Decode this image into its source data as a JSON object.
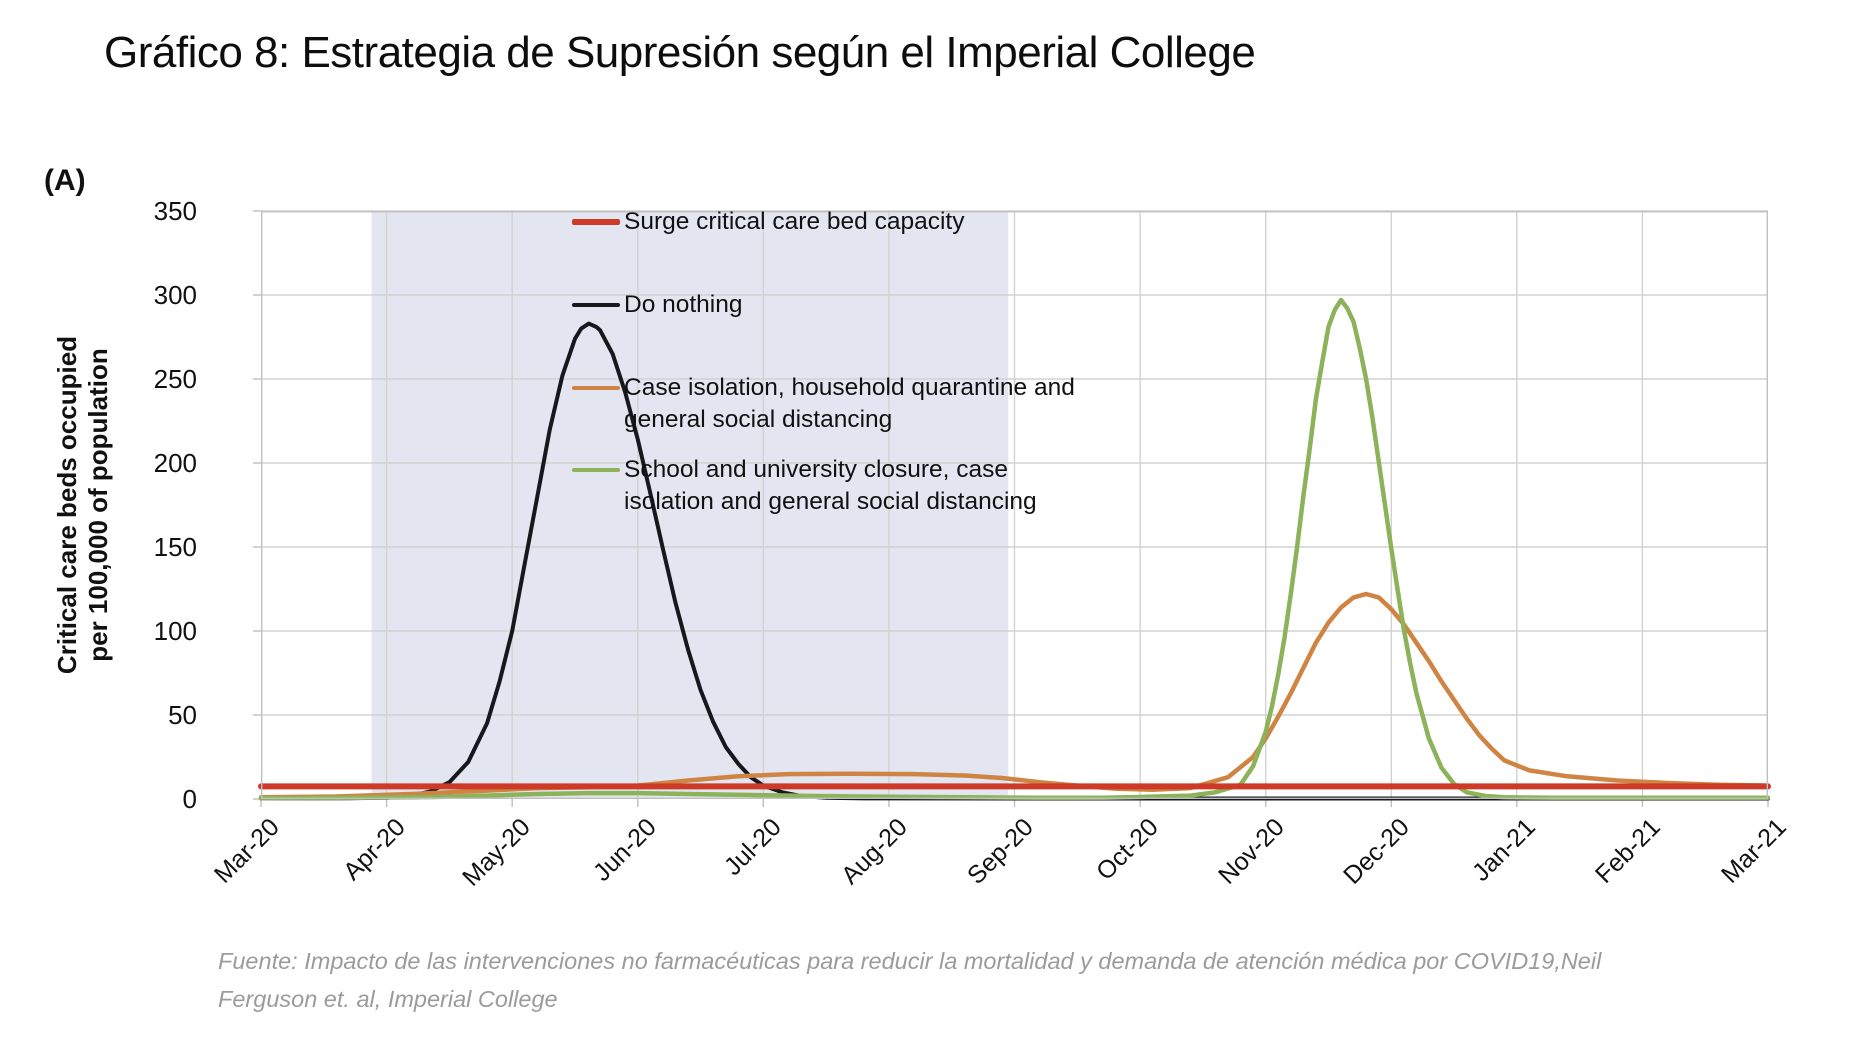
{
  "title": "Gráfico 8: Estrategia de Supresión según el Imperial College",
  "panel_label": "(A)",
  "y_axis": {
    "title_line1": "Critical care beds occupied",
    "title_line2": "per 100,000 of population",
    "ticks": [
      0,
      50,
      100,
      150,
      200,
      250,
      300,
      350
    ]
  },
  "x_axis": {
    "labels": [
      "Mar-20",
      "Apr-20",
      "May-20",
      "Jun-20",
      "Jul-20",
      "Aug-20",
      "Sep-20",
      "Oct-20",
      "Nov-20",
      "Dec-20",
      "Jan-21",
      "Feb-21",
      "Mar-21"
    ]
  },
  "legend": {
    "items": [
      {
        "id": "surge-capacity",
        "label": "Surge critical care bed capacity",
        "color": "#cd3a28",
        "thickness": 6
      },
      {
        "id": "do-nothing",
        "label": "Do nothing",
        "color": "#17171e",
        "thickness": 4
      },
      {
        "id": "case-isolation",
        "label": "Case isolation, household quarantine and\ngeneral social distancing",
        "color": "#d08443",
        "thickness": 4
      },
      {
        "id": "school-closure",
        "label": "School and university closure, case\nisolation and general social distancing",
        "color": "#8cb35a",
        "thickness": 4
      }
    ]
  },
  "footer": {
    "line1": "Fuente: Impacto de las intervenciones no farmacéuticas para reducir la mortalidad y demanda de atención médica por COVID19,Neil",
    "line2": "Ferguson et. al, Imperial College"
  },
  "chart_data": {
    "type": "line",
    "title": "Gráfico 8: Estrategia de Supresión según el Imperial College",
    "xlabel": "",
    "ylabel": "Critical care beds occupied per 100,000 of population",
    "ylim": [
      0,
      350
    ],
    "y_tick_step": 50,
    "x_unit": "months since Mar-20",
    "x_labels": [
      "Mar-20",
      "Apr-20",
      "May-20",
      "Jun-20",
      "Jul-20",
      "Aug-20",
      "Sep-20",
      "Oct-20",
      "Nov-20",
      "Dec-20",
      "Jan-21",
      "Feb-21",
      "Mar-21"
    ],
    "grid": true,
    "legend_position": "inside-top-left",
    "shaded_region": {
      "x_start": 0.88,
      "x_end": 5.95,
      "color": "#e3e6f1"
    },
    "series": [
      {
        "id": "surge-capacity",
        "name": "Surge critical care bed capacity",
        "color": "#cd3a28",
        "width": 6,
        "points": [
          [
            0,
            7.5
          ],
          [
            12,
            7.5
          ]
        ]
      },
      {
        "id": "do-nothing",
        "name": "Do nothing",
        "color": "#17171e",
        "width": 4,
        "peak": {
          "x": 2.61,
          "value": 283
        },
        "points": [
          [
            0,
            0.3
          ],
          [
            0.7,
            0.4
          ],
          [
            1.0,
            0.8
          ],
          [
            1.2,
            2
          ],
          [
            1.35,
            4.5
          ],
          [
            1.5,
            10
          ],
          [
            1.65,
            22
          ],
          [
            1.8,
            45
          ],
          [
            1.9,
            70
          ],
          [
            2.0,
            100
          ],
          [
            2.1,
            140
          ],
          [
            2.2,
            180
          ],
          [
            2.3,
            220
          ],
          [
            2.4,
            252
          ],
          [
            2.5,
            274
          ],
          [
            2.55,
            280
          ],
          [
            2.61,
            283
          ],
          [
            2.67,
            281
          ],
          [
            2.7,
            279
          ],
          [
            2.8,
            265
          ],
          [
            2.9,
            242
          ],
          [
            3.0,
            214
          ],
          [
            3.1,
            182
          ],
          [
            3.2,
            149
          ],
          [
            3.3,
            117
          ],
          [
            3.4,
            89
          ],
          [
            3.5,
            65
          ],
          [
            3.6,
            46
          ],
          [
            3.7,
            31
          ],
          [
            3.8,
            21
          ],
          [
            3.9,
            13
          ],
          [
            4.0,
            8
          ],
          [
            4.15,
            4
          ],
          [
            4.3,
            1.8
          ],
          [
            4.5,
            0.7
          ],
          [
            4.8,
            0.35
          ],
          [
            6.0,
            0.3
          ],
          [
            12,
            0.3
          ]
        ]
      },
      {
        "id": "case-isolation",
        "name": "Case isolation, household quarantine and general social distancing",
        "color": "#d08443",
        "width": 4.5,
        "peak": {
          "x": 8.8,
          "value": 122
        },
        "points": [
          [
            0,
            1
          ],
          [
            0.6,
            1.5
          ],
          [
            1.2,
            3
          ],
          [
            1.8,
            5
          ],
          [
            2.2,
            6.5
          ],
          [
            2.6,
            7
          ],
          [
            3.0,
            8
          ],
          [
            3.4,
            11
          ],
          [
            3.8,
            13.5
          ],
          [
            4.2,
            14.8
          ],
          [
            4.7,
            15
          ],
          [
            5.2,
            14.8
          ],
          [
            5.6,
            14
          ],
          [
            5.9,
            12.5
          ],
          [
            6.2,
            10
          ],
          [
            6.5,
            8
          ],
          [
            6.8,
            6.2
          ],
          [
            7.1,
            5.5
          ],
          [
            7.4,
            6.5
          ],
          [
            7.7,
            13
          ],
          [
            7.9,
            25
          ],
          [
            8.0,
            36
          ],
          [
            8.1,
            49
          ],
          [
            8.2,
            63
          ],
          [
            8.3,
            78
          ],
          [
            8.4,
            93
          ],
          [
            8.5,
            105
          ],
          [
            8.6,
            114
          ],
          [
            8.7,
            120
          ],
          [
            8.8,
            122
          ],
          [
            8.9,
            120
          ],
          [
            9.0,
            113
          ],
          [
            9.1,
            104
          ],
          [
            9.2,
            93
          ],
          [
            9.3,
            82
          ],
          [
            9.4,
            70
          ],
          [
            9.5,
            59
          ],
          [
            9.6,
            48
          ],
          [
            9.7,
            38
          ],
          [
            9.8,
            30
          ],
          [
            9.9,
            23
          ],
          [
            10.1,
            17
          ],
          [
            10.4,
            13.5
          ],
          [
            10.8,
            11
          ],
          [
            11.2,
            9.5
          ],
          [
            11.6,
            8.5
          ],
          [
            12,
            8
          ]
        ]
      },
      {
        "id": "school-closure",
        "name": "School and university closure, case isolation and general social distancing",
        "color": "#8cb35a",
        "width": 4.5,
        "peak": {
          "x": 8.6,
          "value": 297
        },
        "points": [
          [
            0,
            0.5
          ],
          [
            0.8,
            0.8
          ],
          [
            1.4,
            1.2
          ],
          [
            1.8,
            2
          ],
          [
            2.2,
            3
          ],
          [
            2.6,
            3.5
          ],
          [
            3.0,
            3.5
          ],
          [
            3.4,
            3
          ],
          [
            3.9,
            2.4
          ],
          [
            4.4,
            1.8
          ],
          [
            5.0,
            1.3
          ],
          [
            5.6,
            1
          ],
          [
            6.2,
            0.8
          ],
          [
            6.7,
            0.8
          ],
          [
            7.0,
            1.2
          ],
          [
            7.4,
            2
          ],
          [
            7.6,
            4
          ],
          [
            7.8,
            8.5
          ],
          [
            7.9,
            19.5
          ],
          [
            8.0,
            40
          ],
          [
            8.05,
            55
          ],
          [
            8.1,
            74
          ],
          [
            8.15,
            96
          ],
          [
            8.2,
            122
          ],
          [
            8.25,
            150
          ],
          [
            8.3,
            180
          ],
          [
            8.35,
            208
          ],
          [
            8.4,
            238
          ],
          [
            8.45,
            260
          ],
          [
            8.5,
            281
          ],
          [
            8.55,
            291
          ],
          [
            8.6,
            297
          ],
          [
            8.65,
            292
          ],
          [
            8.7,
            284
          ],
          [
            8.75,
            268
          ],
          [
            8.8,
            250
          ],
          [
            8.85,
            227
          ],
          [
            8.9,
            201
          ],
          [
            8.95,
            175
          ],
          [
            9.0,
            149
          ],
          [
            9.05,
            125
          ],
          [
            9.1,
            101
          ],
          [
            9.15,
            81
          ],
          [
            9.2,
            63
          ],
          [
            9.3,
            36
          ],
          [
            9.4,
            18.6
          ],
          [
            9.5,
            9
          ],
          [
            9.6,
            4
          ],
          [
            9.75,
            1.8
          ],
          [
            9.9,
            1
          ],
          [
            10.3,
            0.7
          ],
          [
            11,
            0.7
          ],
          [
            12,
            0.7
          ]
        ]
      }
    ]
  }
}
